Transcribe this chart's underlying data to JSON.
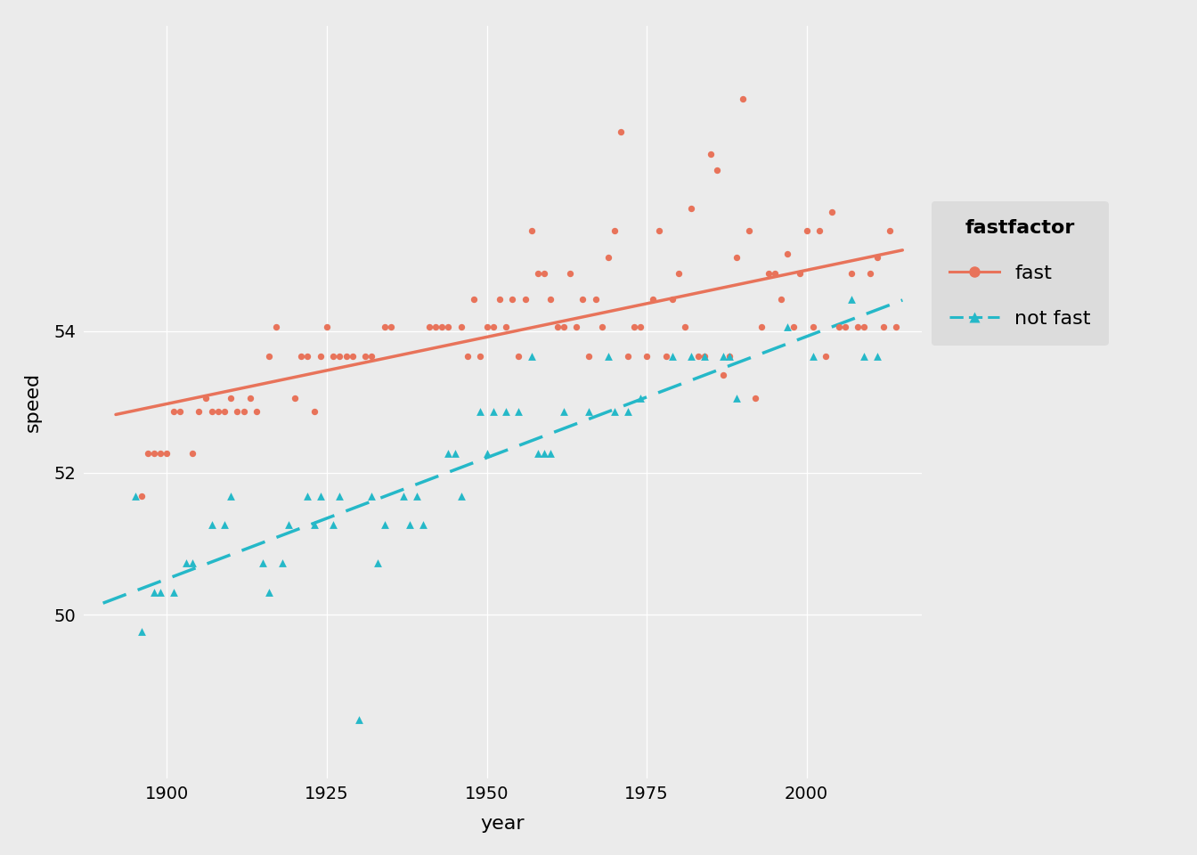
{
  "fast_years": [
    1896,
    1897,
    1898,
    1899,
    1900,
    1901,
    1902,
    1904,
    1905,
    1906,
    1907,
    1908,
    1909,
    1910,
    1911,
    1912,
    1913,
    1914,
    1916,
    1917,
    1920,
    1921,
    1922,
    1923,
    1924,
    1925,
    1926,
    1927,
    1928,
    1929,
    1931,
    1932,
    1934,
    1935,
    1941,
    1942,
    1943,
    1944,
    1946,
    1947,
    1948,
    1949,
    1950,
    1951,
    1952,
    1953,
    1954,
    1955,
    1956,
    1957,
    1958,
    1959,
    1960,
    1961,
    1962,
    1963,
    1964,
    1965,
    1966,
    1967,
    1968,
    1969,
    1970,
    1971,
    1972,
    1973,
    1974,
    1975,
    1976,
    1977,
    1978,
    1979,
    1980,
    1981,
    1982,
    1983,
    1984,
    1985,
    1986,
    1987,
    1988,
    1989,
    1990,
    1991,
    1992,
    1993,
    1994,
    1995,
    1996,
    1997,
    1998,
    1999,
    2000,
    2001,
    2002,
    2003,
    2004,
    2005,
    2006,
    2007,
    2008,
    2009,
    2010,
    2011,
    2012,
    2013,
    2014
  ],
  "fast_speeds": [
    51.67,
    52.28,
    52.28,
    52.28,
    52.28,
    52.87,
    52.87,
    52.28,
    52.87,
    53.05,
    52.87,
    52.87,
    52.87,
    53.05,
    52.87,
    52.87,
    53.05,
    52.87,
    53.64,
    54.06,
    53.05,
    53.64,
    53.64,
    52.87,
    53.64,
    54.06,
    53.64,
    53.64,
    53.64,
    53.64,
    53.64,
    53.64,
    54.06,
    54.06,
    54.06,
    54.06,
    54.06,
    54.06,
    54.06,
    53.64,
    54.45,
    53.64,
    54.06,
    54.06,
    54.45,
    54.06,
    54.45,
    53.64,
    54.45,
    55.41,
    54.81,
    54.81,
    54.45,
    54.06,
    54.06,
    54.81,
    54.06,
    54.45,
    53.64,
    54.45,
    54.06,
    55.03,
    55.41,
    56.81,
    53.64,
    54.06,
    54.06,
    53.64,
    54.45,
    55.41,
    53.64,
    54.45,
    54.81,
    54.06,
    55.72,
    53.64,
    53.64,
    56.49,
    56.27,
    53.38,
    53.64,
    55.03,
    57.27,
    55.41,
    53.05,
    54.06,
    54.81,
    54.81,
    54.45,
    55.09,
    54.06,
    54.81,
    55.41,
    54.06,
    55.41,
    53.64,
    55.68,
    54.06,
    54.06,
    54.81,
    54.06,
    54.06,
    54.81,
    55.03,
    54.06,
    55.41,
    54.06
  ],
  "notfast_years": [
    1895,
    1896,
    1898,
    1899,
    1901,
    1903,
    1904,
    1907,
    1909,
    1910,
    1915,
    1916,
    1918,
    1919,
    1922,
    1923,
    1924,
    1926,
    1927,
    1930,
    1932,
    1933,
    1934,
    1937,
    1938,
    1939,
    1940,
    1944,
    1945,
    1946,
    1949,
    1950,
    1951,
    1953,
    1955,
    1957,
    1958,
    1959,
    1960,
    1962,
    1966,
    1969,
    1970,
    1972,
    1974,
    1979,
    1982,
    1984,
    1987,
    1988,
    1989,
    1997,
    2001,
    2007,
    2009,
    2011
  ],
  "notfast_speeds": [
    51.67,
    49.77,
    50.32,
    50.32,
    50.32,
    50.73,
    50.73,
    51.27,
    51.27,
    51.67,
    50.73,
    50.32,
    50.73,
    51.27,
    51.67,
    51.27,
    51.67,
    51.27,
    51.67,
    48.52,
    51.67,
    50.73,
    51.27,
    51.67,
    51.27,
    51.67,
    51.27,
    52.28,
    52.28,
    51.67,
    52.87,
    52.28,
    52.87,
    52.87,
    52.87,
    53.64,
    52.28,
    52.28,
    52.28,
    52.87,
    52.87,
    53.64,
    52.87,
    52.87,
    53.05,
    53.64,
    53.64,
    53.64,
    53.64,
    53.64,
    53.05,
    54.06,
    53.64,
    54.45,
    53.64,
    53.64
  ],
  "fast_color": "#E8735A",
  "notfast_color": "#25B8C8",
  "background_color": "#EBEBEB",
  "grid_color": "#FFFFFF",
  "xlabel": "year",
  "ylabel": "speed",
  "legend_title": "fastfactor",
  "legend_fast": "fast",
  "legend_notfast": "not fast",
  "xlim": [
    1887,
    2018
  ],
  "ylim": [
    47.7,
    58.3
  ],
  "xticks": [
    1900,
    1925,
    1950,
    1975,
    2000
  ],
  "yticks": [
    50,
    52,
    54
  ]
}
